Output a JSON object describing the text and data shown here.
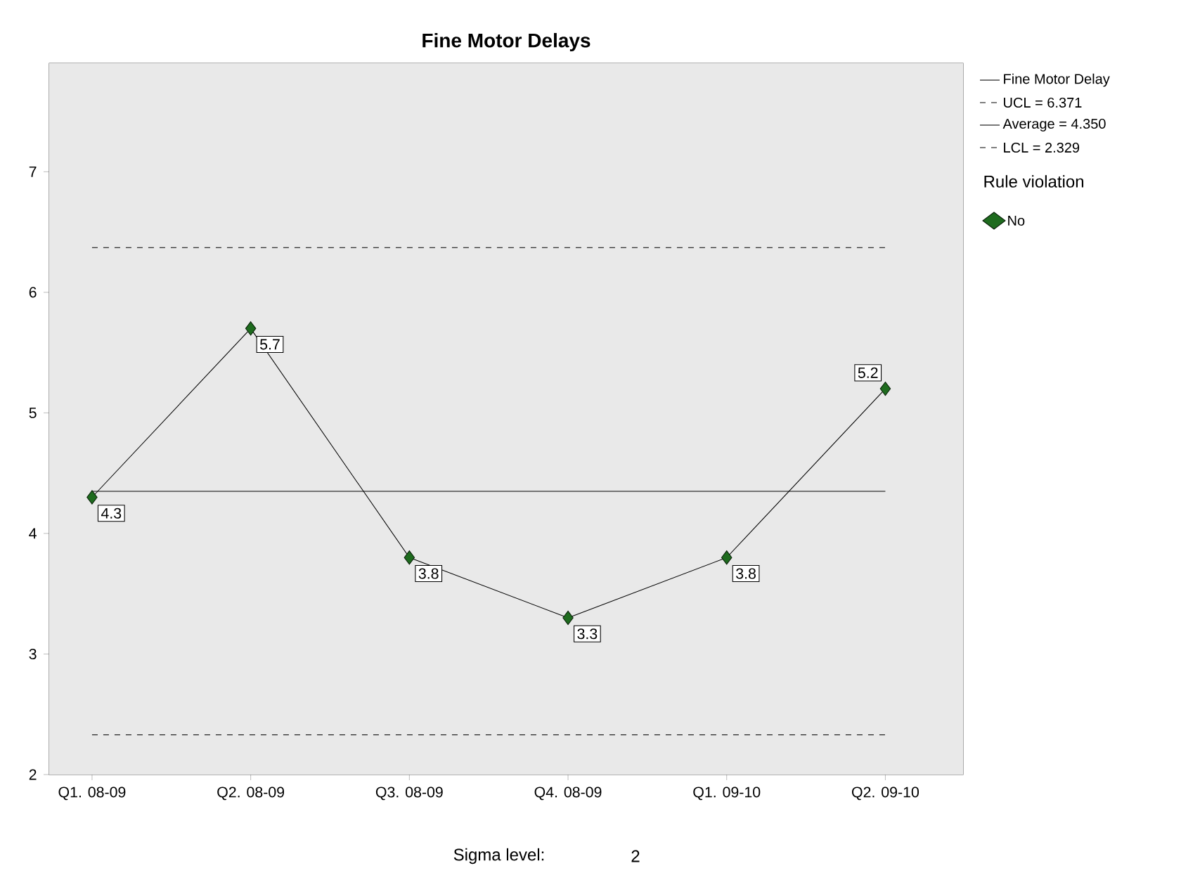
{
  "chart_data": {
    "type": "line",
    "title": "Fine Motor Delays",
    "categories": [
      "Q1. 08-09",
      "Q2. 08-09",
      "Q3. 08-09",
      "Q4. 08-09",
      "Q1. 09-10",
      "Q2. 09-10"
    ],
    "series": [
      {
        "name": "Fine Motor Delay",
        "color": "#000000",
        "values": [
          4.3,
          5.7,
          3.8,
          3.3,
          3.8,
          5.2
        ]
      },
      {
        "name": "No",
        "type": "scatter",
        "marker": "diamond",
        "color": "#1e6b1e",
        "values": [
          4.3,
          5.7,
          3.8,
          3.3,
          3.8,
          5.2
        ],
        "value_labels": [
          "4.3",
          "5.7",
          "3.8",
          "3.3",
          "3.8",
          "5.2"
        ]
      }
    ],
    "ylim": [
      2,
      7.9
    ],
    "yticks": [
      2,
      3,
      4,
      5,
      6,
      7
    ],
    "grid": false,
    "ref_lines": [
      {
        "axis": "y",
        "value": 6.371,
        "label": "UCL = 6.371",
        "line_style": "dashed"
      },
      {
        "axis": "y",
        "value": 4.35,
        "label": "Average = 4.350",
        "line_style": "solid"
      },
      {
        "axis": "y",
        "value": 2.329,
        "label": "LCL = 2.329",
        "line_style": "dashed"
      }
    ],
    "legend": "top right",
    "legend_title": "Rule violation",
    "annotations": [
      "Sigma level:",
      "2"
    ]
  }
}
